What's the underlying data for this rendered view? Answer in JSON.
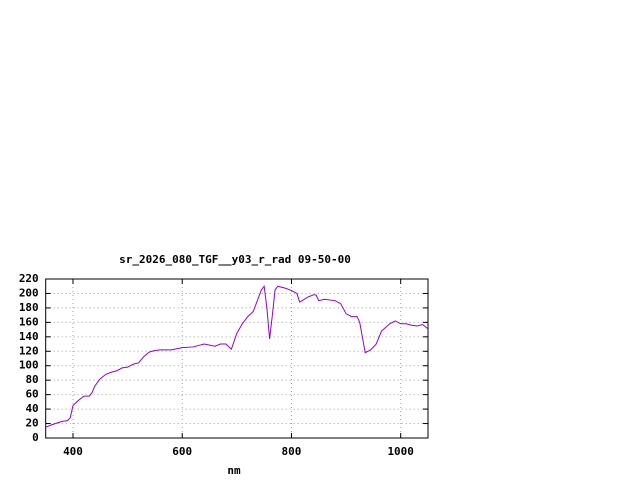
{
  "chart_data": {
    "type": "line",
    "title": "sr_2026_080_TGF__y03_r_rad 09-50-00",
    "x_label": "nm",
    "x": [
      350,
      360,
      380,
      390,
      395,
      400,
      410,
      420,
      430,
      435,
      440,
      450,
      460,
      470,
      480,
      490,
      500,
      510,
      520,
      530,
      540,
      550,
      560,
      580,
      600,
      620,
      640,
      660,
      670,
      680,
      690,
      700,
      710,
      720,
      730,
      740,
      745,
      750,
      755,
      760,
      765,
      770,
      775,
      790,
      800,
      810,
      815,
      830,
      840,
      845,
      850,
      860,
      880,
      890,
      900,
      910,
      920,
      925,
      935,
      945,
      955,
      965,
      980,
      990,
      1000,
      1010,
      1020,
      1030,
      1040,
      1050
    ],
    "values": [
      15,
      18,
      23,
      24,
      28,
      45,
      52,
      58,
      58,
      63,
      72,
      82,
      88,
      91,
      93,
      97,
      98,
      102,
      104,
      113,
      119,
      121,
      122,
      122,
      125,
      126,
      130,
      127,
      130,
      130,
      123,
      145,
      158,
      168,
      175,
      195,
      205,
      210,
      180,
      137,
      170,
      205,
      210,
      207,
      204,
      200,
      188,
      195,
      198,
      198,
      190,
      192,
      190,
      186,
      172,
      168,
      168,
      160,
      118,
      122,
      130,
      148,
      158,
      162,
      158,
      158,
      156,
      155,
      157,
      151
    ],
    "color": "#9400d3",
    "xlim": [
      350,
      1050
    ],
    "xticks": [
      400,
      600,
      800,
      1000
    ],
    "ylim": [
      0,
      220
    ],
    "yticks": [
      0,
      20,
      40,
      60,
      80,
      100,
      120,
      140,
      160,
      180,
      200,
      220
    ],
    "grid": true
  }
}
